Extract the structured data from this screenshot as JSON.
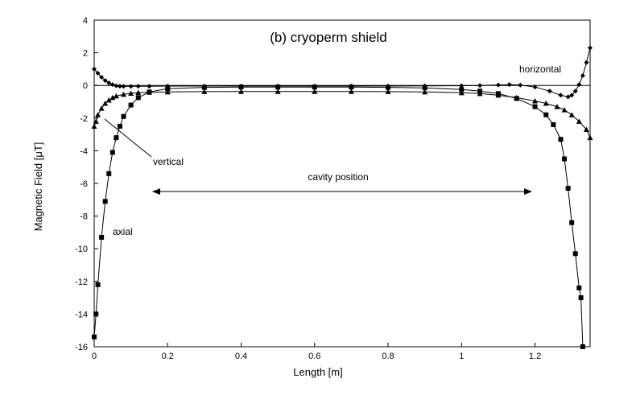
{
  "chart_data": {
    "type": "line",
    "title": "(b) cryoperm shield",
    "xlabel": "Length [m]",
    "ylabel": "Magnetic Field [μT]",
    "xlim": [
      0,
      1.35
    ],
    "ylim": [
      -16,
      4
    ],
    "xticks": [
      0,
      0.2,
      0.4,
      0.6,
      0.8,
      1,
      1.2
    ],
    "xtick_labels": [
      "0",
      "0.2",
      "0.4",
      "0.6",
      "0.8",
      "1",
      "1.2"
    ],
    "yticks": [
      -16,
      -14,
      -12,
      -10,
      -8,
      -6,
      -4,
      -2,
      0,
      2,
      4
    ],
    "ytick_labels": [
      "-16",
      "-14",
      "-12",
      "-10",
      "-8",
      "-6",
      "-4",
      "-2",
      "0",
      "2",
      "4"
    ],
    "grid": false,
    "reference_line_y": 0,
    "series": [
      {
        "name": "horizontal",
        "marker": "diamond",
        "color": "#000000",
        "x": [
          0,
          0.01,
          0.02,
          0.03,
          0.04,
          0.05,
          0.06,
          0.07,
          0.08,
          0.1,
          0.12,
          0.15,
          0.2,
          0.3,
          0.4,
          0.5,
          0.6,
          0.7,
          0.8,
          0.9,
          1.0,
          1.05,
          1.1,
          1.13,
          1.16,
          1.2,
          1.24,
          1.27,
          1.29,
          1.3,
          1.31,
          1.32,
          1.33,
          1.34,
          1.35
        ],
        "y": [
          1.0,
          0.75,
          0.5,
          0.3,
          0.15,
          0.05,
          -0.02,
          -0.05,
          -0.06,
          -0.06,
          -0.05,
          -0.05,
          -0.04,
          -0.04,
          -0.04,
          -0.04,
          -0.04,
          -0.04,
          -0.04,
          -0.03,
          -0.02,
          0.0,
          0.03,
          0.05,
          0.02,
          -0.1,
          -0.35,
          -0.6,
          -0.7,
          -0.6,
          -0.35,
          0.05,
          0.6,
          1.4,
          2.3
        ]
      },
      {
        "name": "vertical",
        "marker": "triangle",
        "color": "#000000",
        "x": [
          0,
          0.005,
          0.01,
          0.02,
          0.03,
          0.04,
          0.05,
          0.06,
          0.08,
          0.1,
          0.12,
          0.15,
          0.2,
          0.3,
          0.4,
          0.5,
          0.6,
          0.7,
          0.8,
          0.9,
          1.0,
          1.05,
          1.1,
          1.15,
          1.2,
          1.23,
          1.26,
          1.28,
          1.3,
          1.32,
          1.34,
          1.35
        ],
        "y": [
          -2.5,
          -2.2,
          -1.8,
          -1.4,
          -1.1,
          -0.9,
          -0.75,
          -0.65,
          -0.55,
          -0.48,
          -0.44,
          -0.42,
          -0.4,
          -0.38,
          -0.37,
          -0.37,
          -0.37,
          -0.37,
          -0.38,
          -0.4,
          -0.45,
          -0.5,
          -0.6,
          -0.75,
          -0.95,
          -1.1,
          -1.3,
          -1.5,
          -1.8,
          -2.2,
          -2.7,
          -3.2
        ]
      },
      {
        "name": "axial",
        "marker": "square",
        "color": "#000000",
        "x": [
          0,
          0.005,
          0.01,
          0.02,
          0.03,
          0.04,
          0.05,
          0.06,
          0.07,
          0.08,
          0.1,
          0.12,
          0.15,
          0.2,
          0.3,
          0.4,
          0.5,
          0.6,
          0.7,
          0.8,
          0.9,
          1.0,
          1.05,
          1.1,
          1.15,
          1.2,
          1.23,
          1.25,
          1.27,
          1.28,
          1.29,
          1.3,
          1.31,
          1.32,
          1.325,
          1.33
        ],
        "y": [
          -15.4,
          -14.0,
          -12.2,
          -9.3,
          -7.1,
          -5.4,
          -4.1,
          -3.2,
          -2.5,
          -1.9,
          -1.2,
          -0.75,
          -0.4,
          -0.2,
          -0.12,
          -0.1,
          -0.1,
          -0.1,
          -0.1,
          -0.12,
          -0.15,
          -0.25,
          -0.35,
          -0.5,
          -0.8,
          -1.3,
          -1.8,
          -2.4,
          -3.3,
          -4.5,
          -6.3,
          -8.4,
          -10.3,
          -12.4,
          -13.0,
          -16.0
        ]
      }
    ],
    "annotations": {
      "horizontal_label": "horizontal",
      "vertical_label": "vertical",
      "axial_label": "axial",
      "cavity_label": "cavity position",
      "cavity_arrow_x": [
        0.16,
        1.19
      ],
      "cavity_arrow_y": -6.5
    }
  }
}
